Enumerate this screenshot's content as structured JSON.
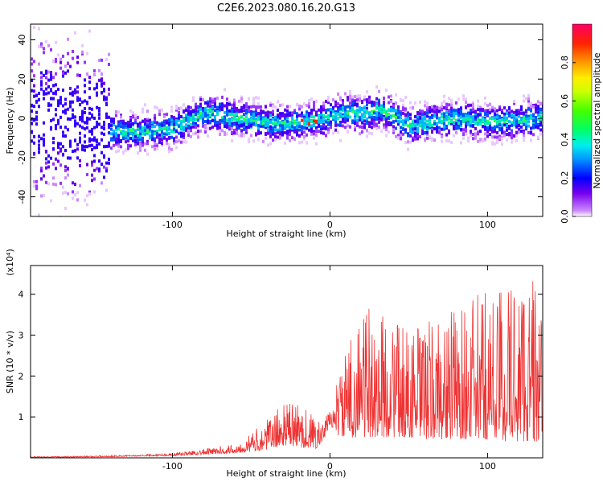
{
  "title": "C2E6.2023.080.16.20.G13",
  "chart_data": [
    {
      "type": "heatmap",
      "xlabel": "Height of straight line (km)",
      "ylabel": "Frequency (Hz)",
      "xlim": [
        -190,
        135
      ],
      "ylim": [
        -50,
        48
      ],
      "xticks": [
        -100,
        0,
        100
      ],
      "yticks": [
        -40,
        -20,
        0,
        20,
        40
      ],
      "ridge": {
        "x": [
          -190,
          -160,
          -140,
          -120,
          -100,
          -80,
          -60,
          -40,
          -30,
          -20,
          -10,
          0,
          10,
          20,
          30,
          40,
          50,
          60,
          80,
          100,
          120,
          135
        ],
        "center_hz": [
          0,
          -2,
          -6,
          -7,
          -5,
          3,
          0,
          -2,
          -3,
          -2,
          -1,
          1,
          3,
          2,
          4,
          1,
          -4,
          -2,
          0,
          -2,
          -1,
          0
        ]
      },
      "colorbar": {
        "label": "Normalized spectral amplitude",
        "range": [
          0,
          1
        ],
        "ticks": [
          0.0,
          0.2,
          0.4,
          0.6,
          0.8
        ]
      }
    },
    {
      "type": "line",
      "xlabel": "Height of straight line (km)",
      "ylabel": "SNR (10 * v/v)",
      "yunit": "(x10⁴)",
      "xlim": [
        -190,
        135
      ],
      "ylim": [
        0,
        4.7
      ],
      "xticks": [
        -100,
        0,
        100
      ],
      "yticks": [
        1,
        2,
        3,
        4
      ],
      "color": "#ee3333",
      "envelope": {
        "x": [
          -190,
          -150,
          -120,
          -100,
          -80,
          -60,
          -50,
          -40,
          -35,
          -30,
          -25,
          -20,
          -15,
          -10,
          -5,
          0,
          5,
          10,
          20,
          30,
          40,
          50,
          60,
          70,
          80,
          90,
          100,
          110,
          120,
          130,
          135
        ],
        "base": [
          0.01,
          0.02,
          0.04,
          0.05,
          0.08,
          0.12,
          0.15,
          0.2,
          0.25,
          0.3,
          0.3,
          0.25,
          0.25,
          0.2,
          0.35,
          0.8,
          0.55,
          0.5,
          0.5,
          0.5,
          0.5,
          0.5,
          0.45,
          0.45,
          0.45,
          0.45,
          0.45,
          0.4,
          0.4,
          0.4,
          0.4
        ],
        "peak": [
          0.03,
          0.05,
          0.08,
          0.12,
          0.22,
          0.35,
          0.6,
          0.95,
          1.15,
          1.3,
          1.4,
          1.35,
          1.25,
          1.05,
          0.85,
          1.2,
          2.0,
          2.6,
          3.8,
          3.6,
          3.4,
          3.2,
          3.3,
          3.5,
          3.7,
          3.9,
          4.2,
          4.4,
          4.6,
          4.5,
          3.2
        ]
      }
    }
  ]
}
